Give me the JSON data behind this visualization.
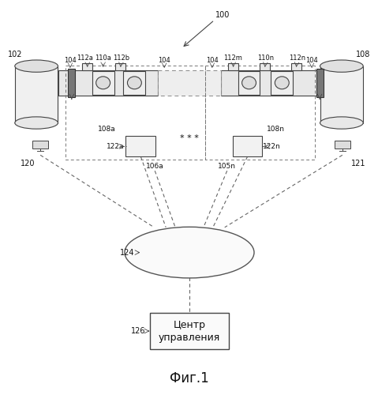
{
  "bg_color": "#ffffff",
  "fig_label": "Фиг.1",
  "label_100": "100",
  "label_102": "102",
  "label_108": "108",
  "label_120": "120",
  "label_121": "121",
  "label_124": "124",
  "label_126": "126",
  "label_104a": "104",
  "label_104b": "104",
  "label_104c": "104",
  "label_104d": "104",
  "label_108a": "108a",
  "label_108n": "108n",
  "label_110a": "110a",
  "label_110n": "110n",
  "label_112a": "112a",
  "label_112b": "112b",
  "label_112m": "112m",
  "label_112n": "112n",
  "label_122a": "122a",
  "label_122n": "122n",
  "label_106a": "106a",
  "label_105n": "105n",
  "center_line1": "Центр",
  "center_line2": "управления",
  "dots": "* * *"
}
